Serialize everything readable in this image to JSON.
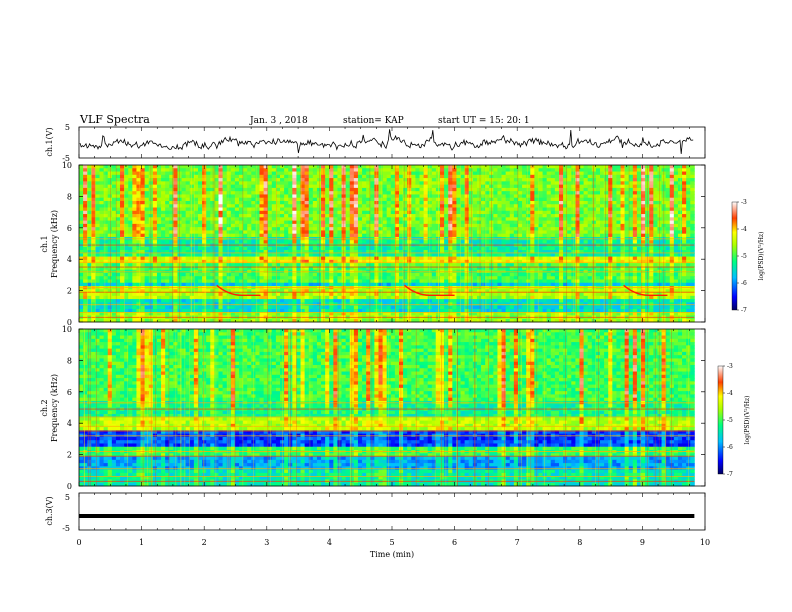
{
  "header": {
    "title": "VLF Spectra",
    "date": "Jan. 3 , 2018",
    "station": "station= KAP",
    "start": "start UT = 15: 20: 1"
  },
  "chart_data": [
    {
      "type": "line",
      "ylabel": "ch.1(V)",
      "ylim": [
        -5,
        5
      ],
      "yticks": [
        "5",
        "-5"
      ],
      "xlim": [
        0,
        10
      ],
      "note": "ch.1 waveform, noisy trace around ~0 V"
    },
    {
      "type": "heatmap",
      "ylabel_1": "ch.1",
      "ylabel_2": "Frequency (kHz)",
      "ylim": [
        0,
        10
      ],
      "yticks": [
        "0",
        "2",
        "4",
        "6",
        "8",
        "10"
      ],
      "xlim": [
        0,
        10
      ],
      "colorbar": {
        "label": "log(PSD)(V²/Hz)",
        "range": [
          -7,
          -3
        ],
        "ticks": [
          "-3",
          "-4",
          "-5",
          "-6",
          "-7"
        ]
      }
    },
    {
      "type": "heatmap",
      "ylabel_1": "ch.2",
      "ylabel_2": "Frequency (kHz)",
      "ylim": [
        0,
        10
      ],
      "yticks": [
        "0",
        "2",
        "4",
        "6",
        "8",
        "10"
      ],
      "xlim": [
        0,
        10
      ],
      "colorbar": {
        "label": "log(PSD)(V²/Hz)",
        "range": [
          -7,
          -3
        ],
        "ticks": [
          "-3",
          "-4",
          "-5",
          "-6",
          "-7"
        ]
      }
    },
    {
      "type": "line",
      "ylabel": "ch.3(V)",
      "ylim": [
        -5,
        5
      ],
      "yticks": [
        "5",
        "-5"
      ],
      "xlim": [
        0,
        10
      ],
      "xticks": [
        "0",
        "1",
        "2",
        "3",
        "4",
        "5",
        "6",
        "7",
        "8",
        "9",
        "10"
      ],
      "xlabel": "Time (min)",
      "series": [
        {
          "x": [
            0,
            9.83
          ],
          "y": [
            -1.2,
            -1.2
          ]
        }
      ]
    }
  ]
}
